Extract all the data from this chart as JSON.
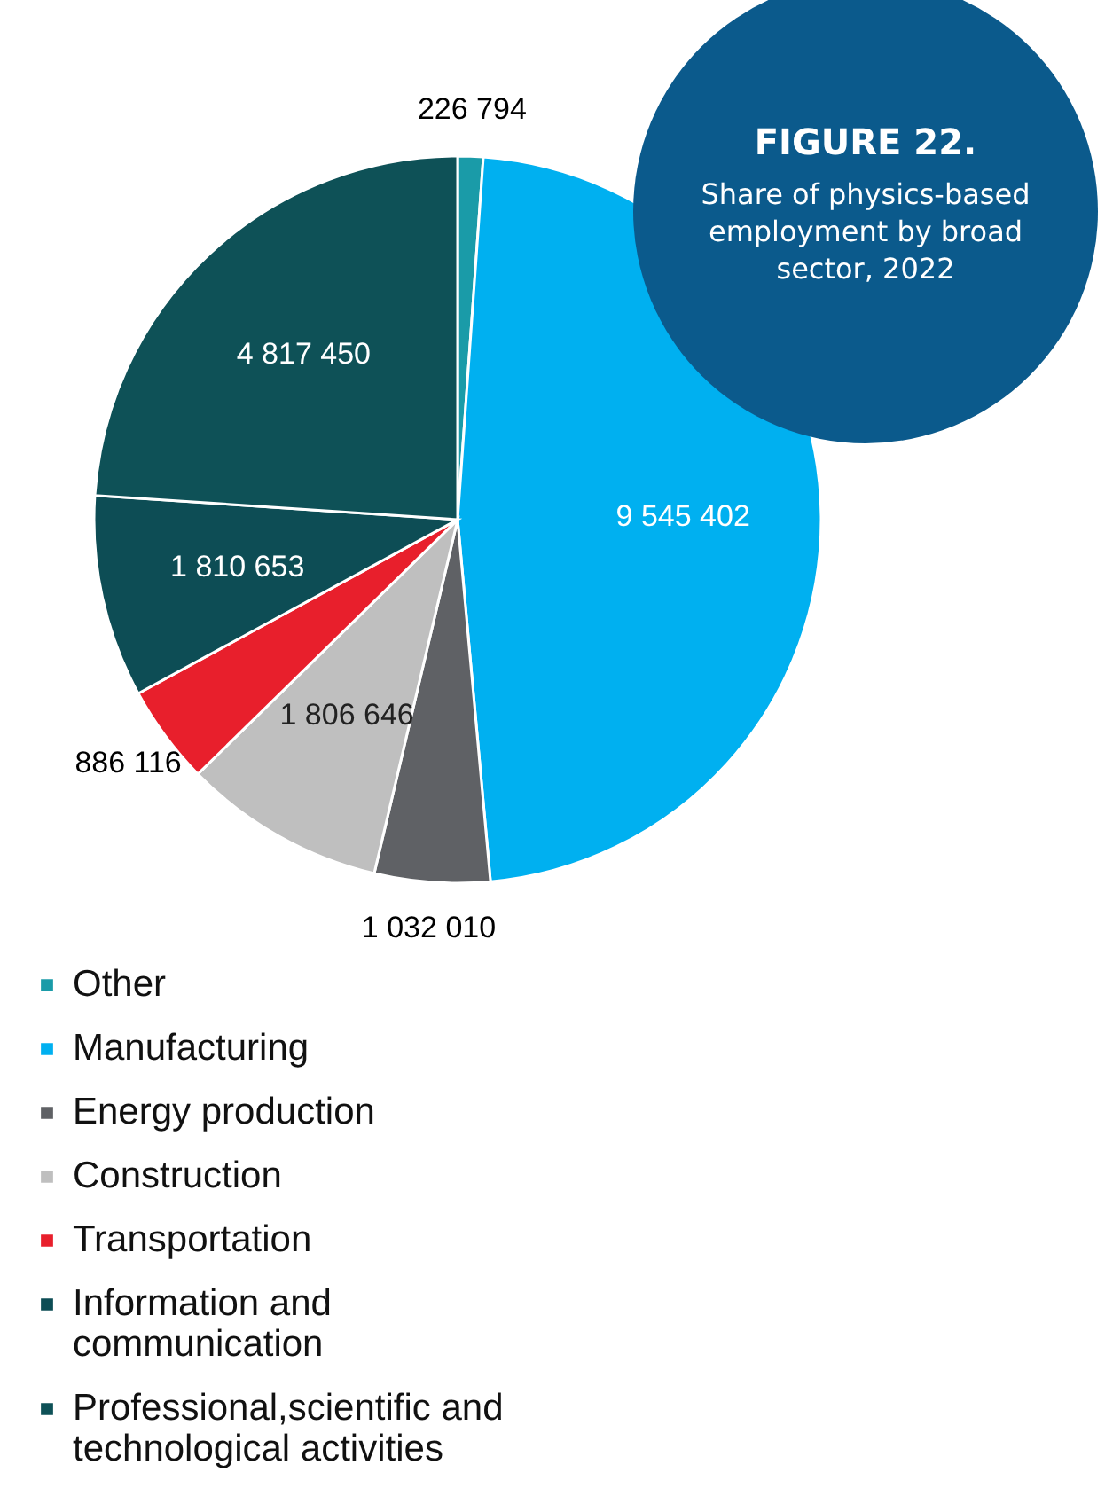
{
  "chart_data": {
    "type": "pie",
    "title": "FIGURE 22.",
    "subtitle": "Share of physics-based employment by broad sector, 2022",
    "categories": [
      "Other",
      "Manufacturing",
      "Energy production",
      "Construction",
      "Transportation",
      "Information and communication",
      "Professional,scientific and technological activities"
    ],
    "values": [
      226794,
      9545402,
      1032010,
      1806646,
      886116,
      1810653,
      4817450
    ],
    "value_labels": [
      "226 794",
      "9 545 402",
      "1 032 010",
      "1 806 646",
      "886 116",
      "1 810 653",
      "4 817 450"
    ],
    "colors": [
      "#1a9ba8",
      "#00b0f0",
      "#5f6165",
      "#bfbfbf",
      "#e81f2c",
      "#0d4d55",
      "#0e5157"
    ],
    "legend": "bottom"
  }
}
